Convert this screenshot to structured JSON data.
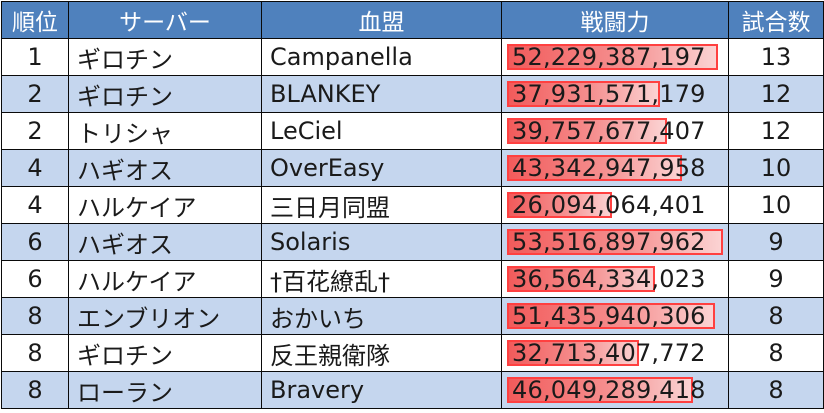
{
  "headers": {
    "rank": "順位",
    "server": "サーバー",
    "guild": "血盟",
    "power": "戦闘力",
    "matches": "試合数"
  },
  "max_power": 53516897962,
  "rows": [
    {
      "rank": "1",
      "server": "ギロチン",
      "guild": "Campanella",
      "power": "52,229,387,197",
      "power_value": 52229387197,
      "matches": "13"
    },
    {
      "rank": "2",
      "server": "ギロチン",
      "guild": "BLANKEY",
      "power": "37,931,571,179",
      "power_value": 37931571179,
      "matches": "12"
    },
    {
      "rank": "2",
      "server": "トリシャ",
      "guild": "LeCiel",
      "power": "39,757,677,407",
      "power_value": 39757677407,
      "matches": "12"
    },
    {
      "rank": "4",
      "server": "ハギオス",
      "guild": "OverEasy",
      "power": "43,342,947,958",
      "power_value": 43342947958,
      "matches": "10"
    },
    {
      "rank": "4",
      "server": "ハルケイア",
      "guild": "三日月同盟",
      "power": "26,094,064,401",
      "power_value": 26094064401,
      "matches": "10"
    },
    {
      "rank": "6",
      "server": "ハギオス",
      "guild": "Solaris",
      "power": "53,516,897,962",
      "power_value": 53516897962,
      "matches": "9"
    },
    {
      "rank": "6",
      "server": "ハルケイア",
      "guild": "†百花繚乱†",
      "power": "36,564,334,023",
      "power_value": 36564334023,
      "matches": "9"
    },
    {
      "rank": "8",
      "server": "エンブリオン",
      "guild": "おかいち",
      "power": "51,435,940,306",
      "power_value": 51435940306,
      "matches": "8"
    },
    {
      "rank": "8",
      "server": "ギロチン",
      "guild": "反王親衛隊",
      "power": "32,713,407,772",
      "power_value": 32713407772,
      "matches": "8"
    },
    {
      "rank": "8",
      "server": "ローラン",
      "guild": "Bravery",
      "power": "46,049,289,418",
      "power_value": 46049289418,
      "matches": "8"
    }
  ]
}
